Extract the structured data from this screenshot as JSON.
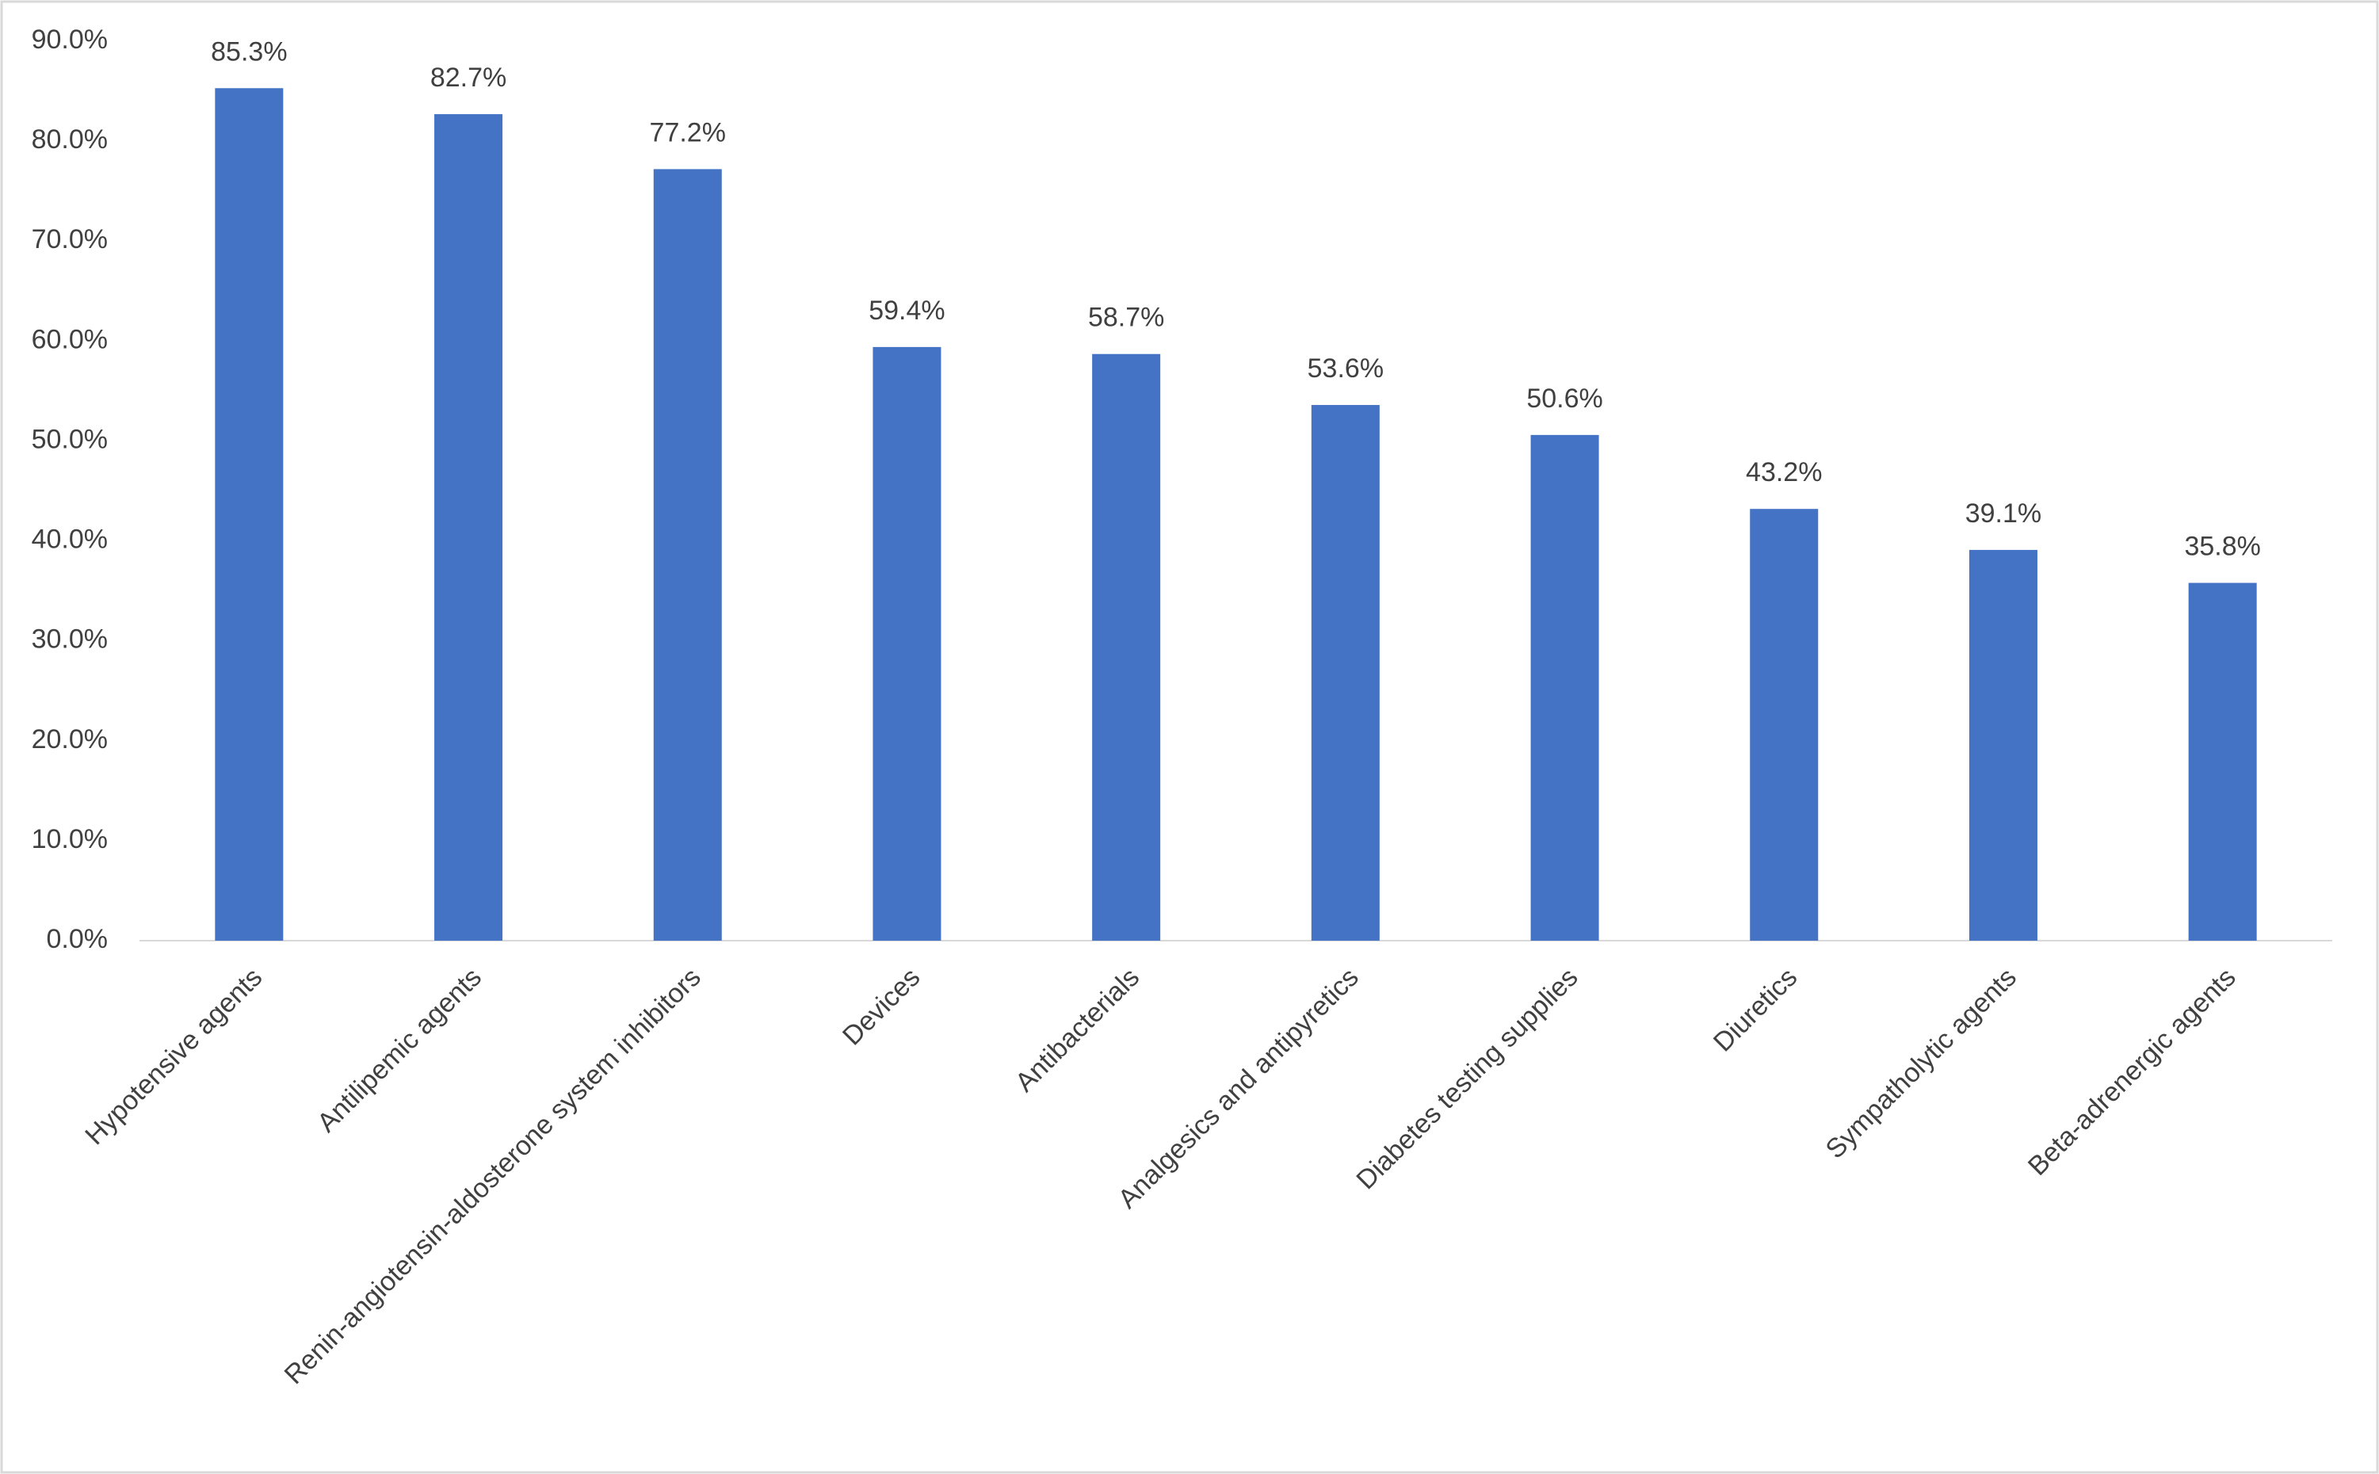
{
  "chart_data": {
    "type": "bar",
    "categories": [
      "Hypotensive agents",
      "Antilipemic agents",
      "Renin-angiotensin-aldosterone system inhibitors",
      "Devices",
      "Antibacterials",
      "Analgesics and antipyretics",
      "Diabetes testing supplies",
      "Diuretics",
      "Sympatholytic agents",
      "Beta-adrenergic agents"
    ],
    "values": [
      85.3,
      82.7,
      77.2,
      59.4,
      58.7,
      53.6,
      50.6,
      43.2,
      39.1,
      35.8
    ],
    "value_labels": [
      "85.3%",
      "82.7%",
      "77.2%",
      "59.4%",
      "58.7%",
      "53.6%",
      "50.6%",
      "43.2%",
      "39.1%",
      "35.8%"
    ],
    "color": "#4472c4",
    "ylim": [
      0,
      90
    ],
    "yticks": [
      {
        "value": 0,
        "label": "0.0%"
      },
      {
        "value": 10,
        "label": "10.0%"
      },
      {
        "value": 20,
        "label": "20.0%"
      },
      {
        "value": 30,
        "label": "30.0%"
      },
      {
        "value": 40,
        "label": "40.0%"
      },
      {
        "value": 50,
        "label": "50.0%"
      },
      {
        "value": 60,
        "label": "60.0%"
      },
      {
        "value": 70,
        "label": "70.0%"
      },
      {
        "value": 80,
        "label": "80.0%"
      },
      {
        "value": 90,
        "label": "90.0%"
      }
    ],
    "grid": false
  }
}
